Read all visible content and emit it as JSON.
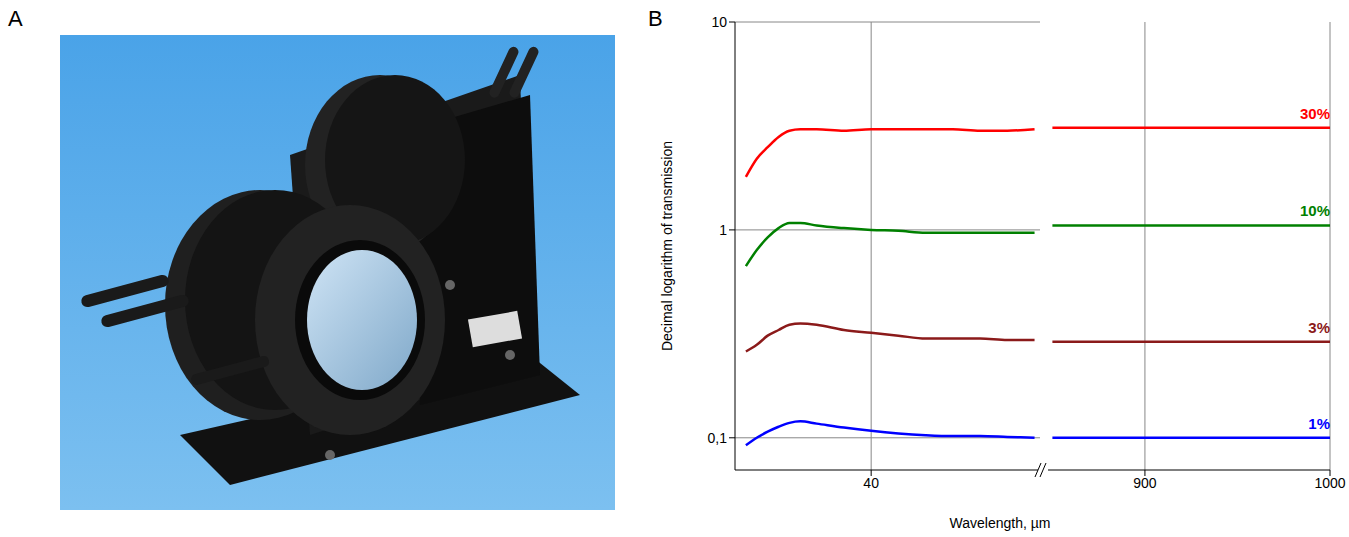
{
  "panel_labels": [
    "A",
    "B"
  ],
  "chart_data": [
    {
      "type": "line",
      "ylabel": "Decimal logarithm of transmission",
      "xlabel": "Wavelength, µm",
      "log": "y",
      "grid": true,
      "xlim": [
        15,
        71
      ],
      "xticks": [
        40
      ],
      "ylim": [
        0.07,
        10
      ],
      "yticks": [
        {
          "value": 0.1,
          "label": "0,1"
        },
        1,
        10
      ],
      "x": [
        17,
        19,
        21,
        23,
        25,
        27,
        30,
        35,
        40,
        45,
        50,
        55,
        60,
        65,
        70
      ],
      "series": [
        {
          "color": "#ff0000",
          "values": [
            1.8,
            2.2,
            2.5,
            2.8,
            3.0,
            3.05,
            3.05,
            3.0,
            3.05,
            3.05,
            3.05,
            3.05,
            3.0,
            3.0,
            3.05
          ]
        },
        {
          "color": "#008000",
          "values": [
            0.67,
            0.8,
            0.92,
            1.02,
            1.08,
            1.08,
            1.05,
            1.02,
            1.0,
            0.99,
            0.97,
            0.97,
            0.97,
            0.97,
            0.97
          ]
        },
        {
          "color": "#8b1a1a",
          "values": [
            0.26,
            0.28,
            0.31,
            0.33,
            0.35,
            0.355,
            0.35,
            0.33,
            0.32,
            0.31,
            0.3,
            0.3,
            0.3,
            0.295,
            0.295
          ]
        },
        {
          "color": "#0000ff",
          "values": [
            0.092,
            0.1,
            0.107,
            0.113,
            0.118,
            0.12,
            0.117,
            0.112,
            0.108,
            0.105,
            0.103,
            0.102,
            0.102,
            0.101,
            0.1
          ]
        }
      ]
    },
    {
      "type": "line",
      "xlim": [
        846,
        1000
      ],
      "xticks": [
        900,
        1000
      ],
      "data_labels": true,
      "x": [
        850,
        900,
        950,
        1000
      ],
      "series": [
        {
          "name": "30%",
          "color": "#ff0000",
          "values": [
            3.1,
            3.1,
            3.1,
            3.1
          ]
        },
        {
          "name": "10%",
          "color": "#008000",
          "values": [
            1.05,
            1.05,
            1.05,
            1.05
          ]
        },
        {
          "name": "3%",
          "color": "#8b1a1a",
          "values": [
            0.29,
            0.29,
            0.29,
            0.29
          ]
        },
        {
          "name": "1%",
          "color": "#0000ff",
          "values": [
            0.1,
            0.1,
            0.1,
            0.1
          ]
        }
      ]
    }
  ]
}
